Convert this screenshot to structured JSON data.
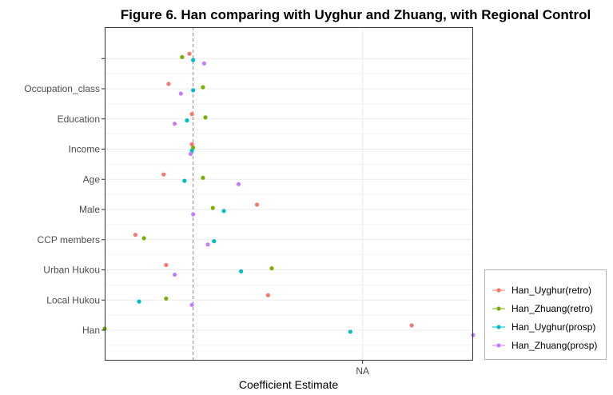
{
  "chart_data": {
    "type": "scatter",
    "title": "Figure 6. Han comparing with Uyghur and Zhuang, with Regional Control",
    "xlabel": "Coefficient Estimate",
    "ylabel": "",
    "x_ticks": [
      {
        "value": 0.7,
        "label": "NA"
      }
    ],
    "xlim": [
      -1.4,
      1.6
    ],
    "reference_line": {
      "x": -0.68,
      "style": "dashed",
      "color": "#888888"
    },
    "grid": true,
    "legend": "right",
    "categories": [
      "Han",
      "Local Hukou",
      "Urban Hukou",
      "CCP members",
      "Male",
      "Age",
      "Income",
      "Education",
      "Occupation_class",
      ""
    ],
    "series": [
      {
        "name": "Han_Uyghur(retro)",
        "color": "#F8766D",
        "offset": 0.16,
        "values": [
          1.1,
          -0.07,
          -0.9,
          -1.15,
          -0.16,
          -0.92,
          -0.69,
          -0.69,
          -0.88,
          -0.71
        ]
      },
      {
        "name": "Han_Zhuang(retro)",
        "color": "#7CAE00",
        "offset": 0.05,
        "values": [
          -1.4,
          -0.9,
          -0.04,
          -1.08,
          -0.52,
          -0.6,
          -0.68,
          -0.58,
          -0.6,
          -0.77
        ]
      },
      {
        "name": "Han_Uyghur(prosp)",
        "color": "#00BFC4",
        "offset": -0.05,
        "values": [
          0.6,
          -1.12,
          -0.29,
          -0.51,
          -0.43,
          -0.75,
          -0.69,
          -0.73,
          -0.68,
          -0.68
        ]
      },
      {
        "name": "Han_Zhuang(prosp)",
        "color": "#C77CFF",
        "offset": -0.16,
        "values": [
          1.6,
          -0.69,
          -0.83,
          -0.56,
          -0.68,
          -0.31,
          -0.7,
          -0.83,
          -0.78,
          -0.59
        ]
      }
    ]
  }
}
